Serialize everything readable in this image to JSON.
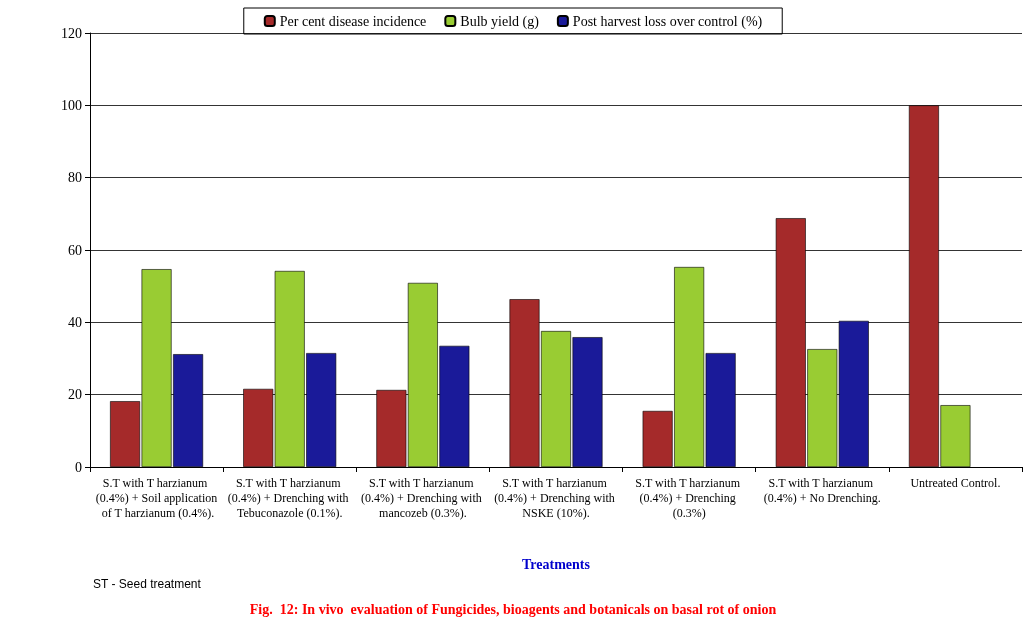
{
  "chart_data": {
    "type": "bar",
    "title": "Fig.  12: In vivo  evaluation of Fungicides, bioagents and botanicals on basal rot of onion",
    "xlabel": "Treatments",
    "annotations": [
      "ST - Seed treatment"
    ],
    "categories": [
      "S.T with T harzianum (0.4%) + Soil application of T harzianum (0.4%).",
      "S.T with T harzianum (0.4%) + Drenching with Tebuconazole (0.1%).",
      "S.T with T harzianum (0.4%) + Drenching with mancozeb (0.3%).",
      "S.T with T harzianum (0.4%) + Drenching with NSKE (10%).",
      "S.T with T harzianum (0.4%) + Drenching (0.3%)",
      "S.T with T harzianum (0.4%) + No Drenching.",
      "Untreated Control."
    ],
    "series": [
      {
        "name": "Per cent disease incidence",
        "color": "#a52a2a",
        "values": [
          18.2,
          21.6,
          21.3,
          46.4,
          15.5,
          68.8,
          100
        ]
      },
      {
        "name": "Bulb yield (g)",
        "color": "#99cc33",
        "values": [
          54.7,
          54.2,
          50.9,
          37.6,
          55.3,
          32.6,
          17.1
        ]
      },
      {
        "name": "Post harvest loss over control (%)",
        "color": "#1a1a99",
        "values": [
          31.2,
          31.5,
          33.5,
          35.9,
          31.5,
          40.4,
          null
        ]
      }
    ],
    "ylim": [
      0,
      120
    ],
    "yticks": [
      0,
      20,
      40,
      60,
      80,
      100,
      120
    ],
    "grid": "y",
    "legend": "top"
  }
}
